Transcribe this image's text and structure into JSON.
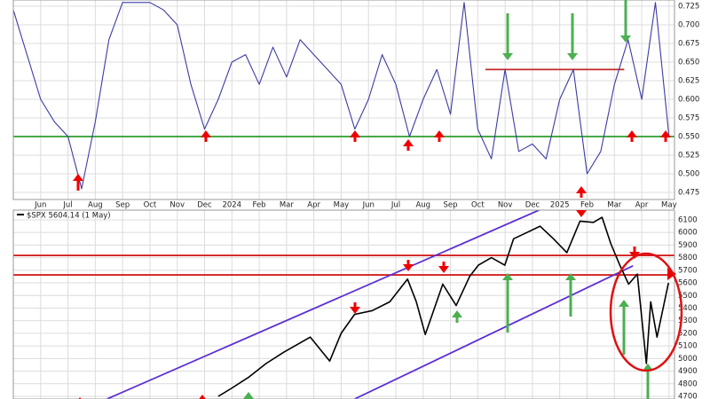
{
  "chart_data": [
    {
      "type": "line",
      "x": [
        -1,
        -0.5,
        0,
        0.5,
        1,
        1.5,
        2,
        2.5,
        3,
        3.5,
        4,
        4.5,
        5,
        5.5,
        6,
        6.5,
        7,
        7.5,
        8,
        8.5,
        9,
        9.5,
        10,
        10.5,
        11,
        11.5,
        12,
        12.5,
        13,
        13.5,
        14,
        14.5,
        15,
        15.5,
        16,
        16.5,
        17,
        17.5,
        18,
        18.5,
        19,
        19.5,
        20,
        20.5,
        21,
        21.5,
        22,
        22.5,
        23
      ],
      "series": [
        {
          "color": "#3b3ba6",
          "values": [
            0.72,
            0.66,
            0.6,
            0.57,
            0.55,
            0.48,
            0.57,
            0.68,
            0.73,
            0.73,
            0.73,
            0.72,
            0.7,
            0.62,
            0.56,
            0.6,
            0.65,
            0.66,
            0.62,
            0.67,
            0.63,
            0.68,
            0.66,
            0.64,
            0.62,
            0.56,
            0.6,
            0.66,
            0.62,
            0.55,
            0.6,
            0.64,
            0.58,
            0.73,
            0.56,
            0.52,
            0.64,
            0.53,
            0.54,
            0.52,
            0.6,
            0.64,
            0.5,
            0.53,
            0.62,
            0.68,
            0.6,
            0.73,
            0.55
          ]
        }
      ],
      "xlim": [
        -1,
        23.2
      ],
      "ylim": [
        0.4655,
        0.7333
      ],
      "xticks": [
        {
          "value": 0,
          "label": "Jun"
        },
        {
          "value": 1,
          "label": "Jul"
        },
        {
          "value": 2,
          "label": "Aug"
        },
        {
          "value": 3,
          "label": "Sep"
        },
        {
          "value": 4,
          "label": "Oct"
        },
        {
          "value": 5,
          "label": "Nov"
        },
        {
          "value": 6,
          "label": "Dec"
        },
        {
          "value": 7,
          "label": "2024"
        },
        {
          "value": 8,
          "label": "Feb"
        },
        {
          "value": 9,
          "label": "Mar"
        },
        {
          "value": 10,
          "label": "Apr"
        },
        {
          "value": 11,
          "label": "May"
        },
        {
          "value": 12,
          "label": "Jun"
        },
        {
          "value": 13,
          "label": "Jul"
        },
        {
          "value": 14,
          "label": "Aug"
        },
        {
          "value": 15,
          "label": "Sep"
        },
        {
          "value": 16,
          "label": "Oct"
        },
        {
          "value": 17,
          "label": "Nov"
        },
        {
          "value": 18,
          "label": "Dec"
        },
        {
          "value": 19,
          "label": "2025"
        },
        {
          "value": 20,
          "label": "Feb"
        },
        {
          "value": 21,
          "label": "Mar"
        },
        {
          "value": 22,
          "label": "Apr"
        },
        {
          "value": 23,
          "label": "May"
        }
      ],
      "yticks": [
        0.475,
        {
          "value": 0.5,
          "label": "0.500"
        },
        0.525,
        {
          "value": 0.55,
          "label": "0.550"
        },
        0.575,
        {
          "value": 0.6,
          "label": "0.600"
        },
        0.625,
        {
          "value": 0.65,
          "label": "0.650"
        },
        0.675,
        {
          "value": 0.7,
          "label": "0.700"
        },
        0.725
      ],
      "hlines": [
        {
          "y": 0.55,
          "color": "#2e9e2e"
        },
        {
          "y": 0.64,
          "x": [
            16.28,
            21.36
          ],
          "color": "#c62828"
        }
      ],
      "grid": true
    },
    {
      "type": "line",
      "title": "$SPX 5604.14 (1 May)",
      "x": [
        6.5,
        6.96,
        7.6,
        8.25,
        8.9,
        9.87,
        10.58,
        11,
        11.49,
        12.14,
        12.78,
        13.43,
        13.75,
        14.08,
        14.72,
        15.21,
        15.7,
        16.02,
        16.5,
        16.99,
        17.31,
        17.8,
        18.28,
        18.77,
        19.26,
        19.74,
        20.23,
        20.55,
        20.87,
        21.2,
        21.52,
        21.84,
        22.17,
        22.33,
        22.56,
        22.98
      ],
      "series": [
        {
          "color": "#000000",
          "values": [
            4700,
            4760,
            4850,
            4960,
            5050,
            5170,
            4980,
            5200,
            5350,
            5380,
            5450,
            5630,
            5450,
            5190,
            5590,
            5420,
            5650,
            5740,
            5800,
            5740,
            5950,
            6000,
            6050,
            5950,
            5840,
            6090,
            6080,
            6120,
            5910,
            5740,
            5590,
            5670,
            4960,
            5450,
            5170,
            5600
          ]
        }
      ],
      "xlim": [
        -1,
        23.2
      ],
      "ylim": [
        4679,
        6177
      ],
      "yticks": [
        4700,
        4800,
        4900,
        5000,
        5100,
        5200,
        5300,
        5400,
        5500,
        5600,
        5700,
        5800,
        5900,
        6000,
        6100
      ],
      "hlines": [
        {
          "y": 5818,
          "color": "#d32020"
        },
        {
          "y": 5663,
          "color": "#d32020"
        }
      ],
      "trendlines": [
        {
          "x": [
            2.43,
            18.77
          ],
          "y": [
            4679,
            6227
          ],
          "color": "#5a2fd6"
        },
        {
          "x": [
            11.49,
            21.68
          ],
          "y": [
            4679,
            5735
          ],
          "color": "#5a2fd6"
        }
      ],
      "grid": true
    }
  ]
}
